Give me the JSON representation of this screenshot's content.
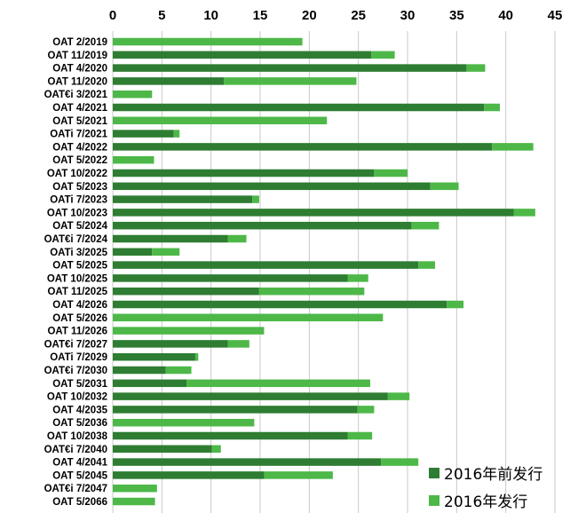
{
  "chart_data": {
    "type": "bar",
    "orientation": "horizontal",
    "stacked": true,
    "xlim": [
      0,
      45
    ],
    "xticks": [
      "0",
      "5",
      "10",
      "15",
      "20",
      "25",
      "30",
      "35",
      "40",
      "45"
    ],
    "x_axis_position": "top",
    "grid": true,
    "legend_position": "bottom-right",
    "categories": [
      "OAT 2/2019",
      "OAT 11/2019",
      "OAT 4/2020",
      "OAT 11/2020",
      "OAT€i 3/2021",
      "OAT 4/2021",
      "OAT 5/2021",
      "OATi 7/2021",
      "OAT 4/2022",
      "OAT 5/2022",
      "OAT 10/2022",
      "OAT 5/2023",
      "OATi 7/2023",
      "OAT 10/2023",
      "OAT 5/2024",
      "OAT€i 7/2024",
      "OATi 3/2025",
      "OAT 5/2025",
      "OAT 10/2025",
      "OAT 11/2025",
      "OAT 4/2026",
      "OAT 5/2026",
      "OAT 11/2026",
      "OAT€i 7/2027",
      "OATi 7/2029",
      "OAT€i 7/2030",
      "OAT 5/2031",
      "OAT 10/2032",
      "OAT 4/2035",
      "OAT 5/2036",
      "OAT 10/2038",
      "OAT€i 7/2040",
      "OAT 4/2041",
      "OAT 5/2045",
      "OAT€i 7/2047",
      "OAT 5/2066"
    ],
    "series": [
      {
        "name": "2016年前发行",
        "color": "#2e7d32",
        "values": [
          0,
          26.3,
          36.0,
          11.3,
          0,
          37.8,
          0,
          6.2,
          38.6,
          0,
          26.6,
          32.3,
          14.2,
          40.8,
          30.4,
          11.7,
          4.0,
          31.1,
          23.9,
          14.9,
          34.0,
          0,
          0,
          11.7,
          8.4,
          5.4,
          7.5,
          28.0,
          24.9,
          0,
          23.9,
          10.1,
          27.3,
          15.4,
          0,
          0
        ]
      },
      {
        "name": "2016年发行",
        "color": "#4db848",
        "values": [
          19.3,
          2.4,
          1.9,
          13.5,
          4.0,
          1.6,
          21.8,
          0.6,
          4.2,
          4.2,
          3.4,
          2.9,
          0.7,
          2.2,
          2.8,
          1.9,
          2.8,
          1.7,
          2.1,
          10.7,
          1.7,
          27.5,
          15.4,
          2.2,
          0.3,
          2.6,
          18.7,
          2.2,
          1.7,
          14.4,
          2.5,
          0.9,
          3.8,
          7.0,
          4.5,
          4.3
        ]
      }
    ]
  }
}
